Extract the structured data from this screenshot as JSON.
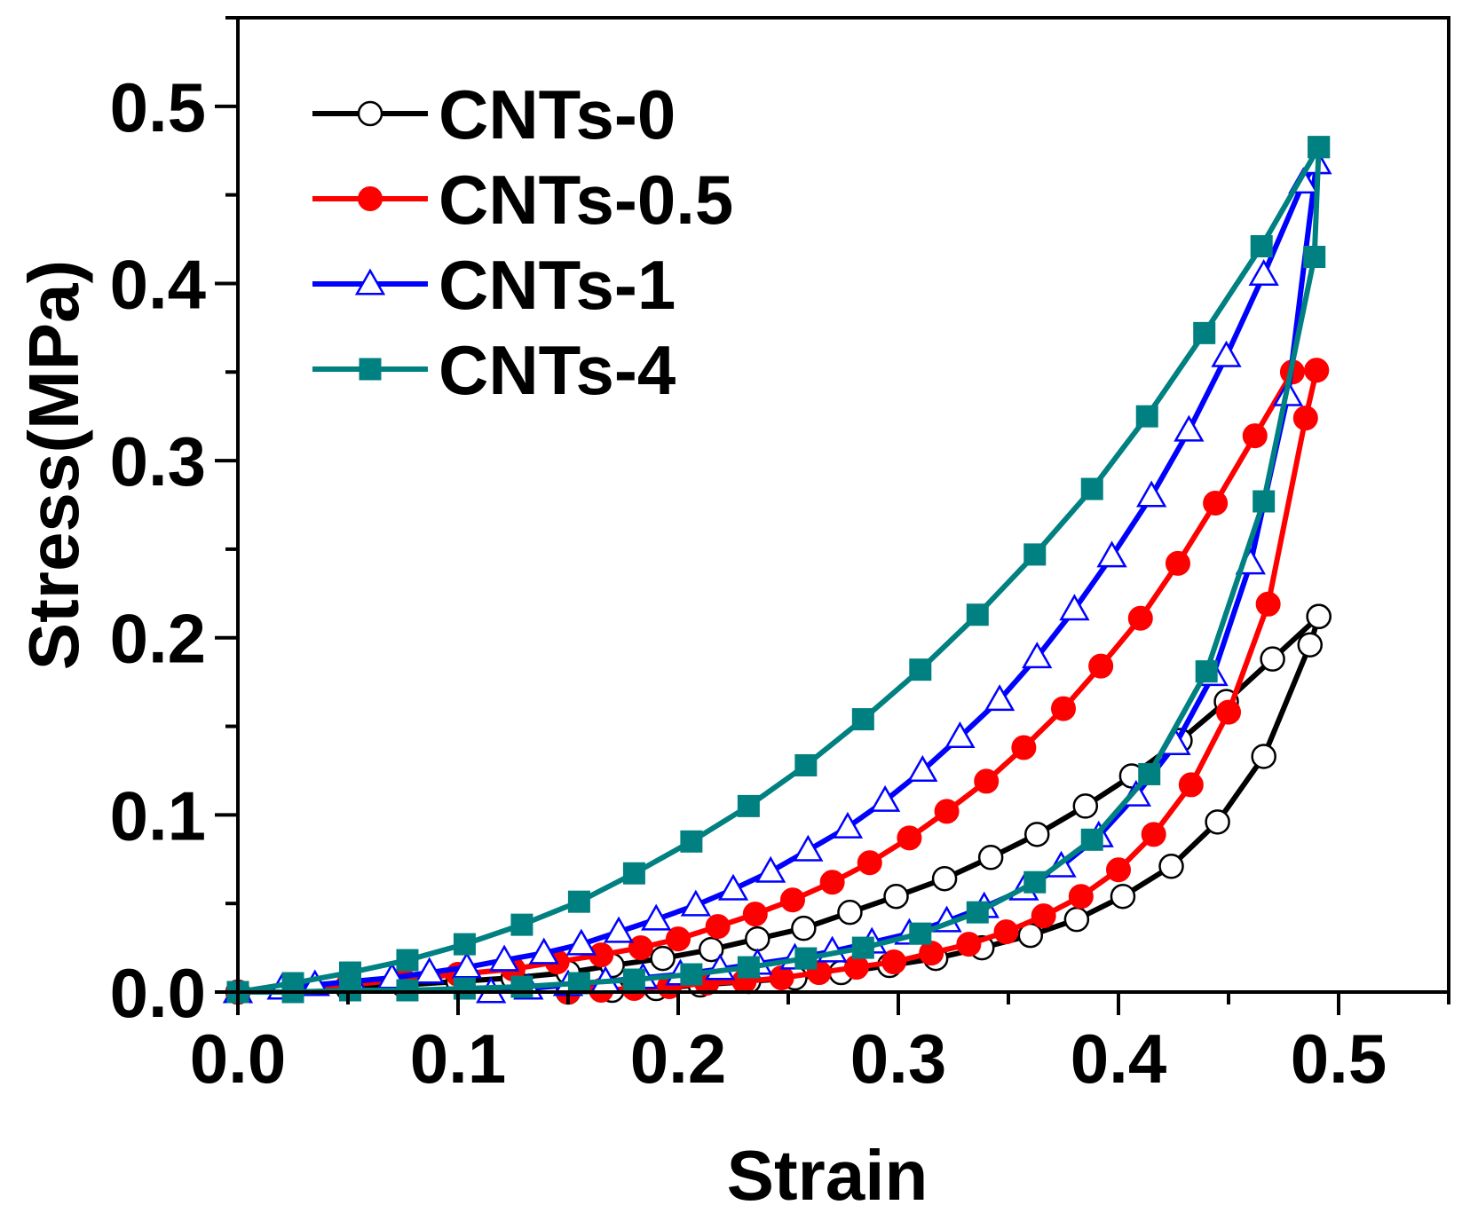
{
  "chart_data": {
    "type": "line",
    "xlabel": "Strain",
    "ylabel": "Stress(MPa)",
    "xlim": [
      0.0,
      0.55
    ],
    "ylim": [
      0.0,
      0.55
    ],
    "xticks": [
      "0.0",
      "0.1",
      "0.2",
      "0.3",
      "0.4",
      "0.5"
    ],
    "yticks": [
      "0.0",
      "0.1",
      "0.2",
      "0.3",
      "0.4",
      "0.5"
    ],
    "legend_position": "top-left",
    "series": [
      {
        "name": "CNTs-0",
        "color": "#000000",
        "marker": "circle-open",
        "loading": {
          "x": [
            0.0,
            0.025,
            0.05,
            0.075,
            0.1,
            0.125,
            0.15,
            0.17,
            0.193,
            0.215,
            0.236,
            0.257,
            0.278,
            0.299,
            0.321,
            0.342,
            0.363,
            0.385,
            0.406,
            0.428,
            0.449,
            0.47,
            0.491
          ],
          "y": [
            0.0,
            0.001,
            0.002,
            0.004,
            0.006,
            0.008,
            0.011,
            0.015,
            0.019,
            0.024,
            0.03,
            0.036,
            0.045,
            0.054,
            0.064,
            0.076,
            0.089,
            0.105,
            0.122,
            0.142,
            0.164,
            0.188,
            0.212
          ]
        },
        "unloading": {
          "x": [
            0.491,
            0.487,
            0.466,
            0.445,
            0.424,
            0.402,
            0.381,
            0.36,
            0.338,
            0.317,
            0.296,
            0.274,
            0.253,
            0.232,
            0.21,
            0.19,
            0.17,
            0.15
          ],
          "y": [
            0.212,
            0.196,
            0.133,
            0.096,
            0.071,
            0.054,
            0.041,
            0.032,
            0.025,
            0.019,
            0.015,
            0.011,
            0.008,
            0.006,
            0.004,
            0.002,
            0.001,
            0.0
          ]
        }
      },
      {
        "name": "CNTs-0.5",
        "color": "#ff0000",
        "marker": "circle-filled",
        "loading": {
          "x": [
            0.0,
            0.025,
            0.05,
            0.075,
            0.1,
            0.125,
            0.145,
            0.165,
            0.183,
            0.2,
            0.218,
            0.235,
            0.252,
            0.27,
            0.287,
            0.305,
            0.322,
            0.34,
            0.357,
            0.375,
            0.392,
            0.41,
            0.427,
            0.444,
            0.462,
            0.479,
            0.49
          ],
          "y": [
            0.0,
            0.002,
            0.004,
            0.007,
            0.01,
            0.013,
            0.017,
            0.021,
            0.025,
            0.03,
            0.037,
            0.044,
            0.052,
            0.062,
            0.073,
            0.087,
            0.102,
            0.119,
            0.138,
            0.16,
            0.184,
            0.211,
            0.242,
            0.276,
            0.314,
            0.35,
            0.351
          ]
        },
        "unloading": {
          "x": [
            0.49,
            0.485,
            0.468,
            0.45,
            0.433,
            0.416,
            0.4,
            0.383,
            0.366,
            0.349,
            0.332,
            0.315,
            0.298,
            0.281,
            0.264,
            0.247,
            0.23,
            0.213,
            0.196,
            0.18,
            0.165,
            0.15
          ],
          "y": [
            0.351,
            0.324,
            0.219,
            0.158,
            0.117,
            0.089,
            0.069,
            0.054,
            0.043,
            0.034,
            0.027,
            0.022,
            0.017,
            0.014,
            0.011,
            0.008,
            0.006,
            0.005,
            0.003,
            0.002,
            0.001,
            0.0
          ]
        }
      },
      {
        "name": "CNTs-1",
        "color": "#0000ff",
        "marker": "triangle-open",
        "loading": {
          "x": [
            0.0,
            0.02,
            0.035,
            0.052,
            0.07,
            0.087,
            0.104,
            0.121,
            0.139,
            0.156,
            0.173,
            0.19,
            0.208,
            0.225,
            0.242,
            0.259,
            0.277,
            0.294,
            0.311,
            0.328,
            0.346,
            0.363,
            0.38,
            0.397,
            0.415,
            0.432,
            0.449,
            0.466,
            0.484,
            0.49
          ],
          "y": [
            0.0,
            0.002,
            0.004,
            0.006,
            0.008,
            0.011,
            0.014,
            0.018,
            0.022,
            0.027,
            0.034,
            0.041,
            0.049,
            0.058,
            0.068,
            0.08,
            0.093,
            0.108,
            0.125,
            0.144,
            0.165,
            0.189,
            0.216,
            0.246,
            0.28,
            0.317,
            0.359,
            0.405,
            0.457,
            0.468
          ]
        },
        "unloading": {
          "x": [
            0.49,
            0.477,
            0.46,
            0.443,
            0.426,
            0.408,
            0.391,
            0.374,
            0.357,
            0.339,
            0.322,
            0.305,
            0.288,
            0.27,
            0.253,
            0.236,
            0.219,
            0.201,
            0.184,
            0.167,
            0.15,
            0.132,
            0.115
          ],
          "y": [
            0.468,
            0.337,
            0.242,
            0.179,
            0.14,
            0.111,
            0.088,
            0.071,
            0.058,
            0.048,
            0.04,
            0.033,
            0.028,
            0.023,
            0.019,
            0.016,
            0.013,
            0.01,
            0.008,
            0.006,
            0.004,
            0.002,
            0.0
          ]
        }
      },
      {
        "name": "CNTs-4",
        "color": "#008080",
        "marker": "square-filled",
        "loading": {
          "x": [
            0.0,
            0.025,
            0.051,
            0.077,
            0.103,
            0.129,
            0.155,
            0.18,
            0.206,
            0.232,
            0.258,
            0.284,
            0.31,
            0.336,
            0.362,
            0.388,
            0.413,
            0.439,
            0.465,
            0.491
          ],
          "y": [
            0.0,
            0.005,
            0.011,
            0.018,
            0.027,
            0.038,
            0.051,
            0.067,
            0.085,
            0.105,
            0.128,
            0.154,
            0.182,
            0.213,
            0.247,
            0.284,
            0.325,
            0.372,
            0.421,
            0.477
          ]
        },
        "unloading": {
          "x": [
            0.491,
            0.489,
            0.466,
            0.44,
            0.414,
            0.388,
            0.362,
            0.336,
            0.31,
            0.284,
            0.258,
            0.232,
            0.206,
            0.18,
            0.155,
            0.129,
            0.103,
            0.077,
            0.051,
            0.025,
            0.0
          ],
          "y": [
            0.477,
            0.415,
            0.277,
            0.181,
            0.123,
            0.086,
            0.062,
            0.045,
            0.033,
            0.025,
            0.019,
            0.014,
            0.01,
            0.007,
            0.005,
            0.003,
            0.002,
            0.001,
            0.001,
            0.0,
            0.0
          ]
        }
      }
    ]
  }
}
